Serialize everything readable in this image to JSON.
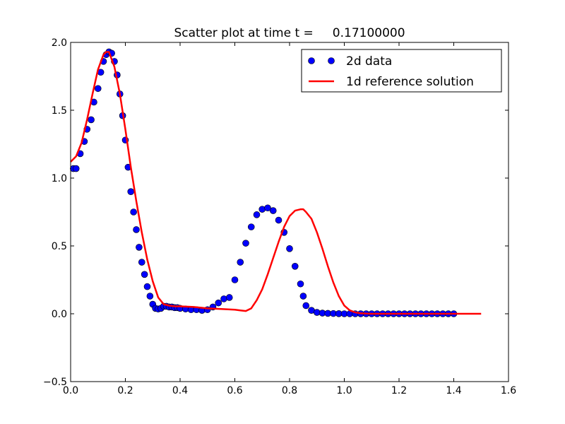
{
  "chart_data": {
    "type": "scatter",
    "title": "Scatter plot at time t =     0.17100000",
    "xlabel": "",
    "ylabel": "",
    "xlim": [
      0.0,
      1.6
    ],
    "ylim": [
      -0.5,
      2.0
    ],
    "xticks": [
      "0.0",
      "0.2",
      "0.4",
      "0.6",
      "0.8",
      "1.0",
      "1.2",
      "1.4",
      "1.6"
    ],
    "yticks": [
      "−0.5",
      "0.0",
      "0.5",
      "1.0",
      "1.5",
      "2.0"
    ],
    "grid": false,
    "legend_position": "top-right",
    "series": [
      {
        "name": "2d data",
        "kind": "markers",
        "color": "#0000ff",
        "x": [
          0.01,
          0.02,
          0.035,
          0.05,
          0.06,
          0.075,
          0.085,
          0.1,
          0.11,
          0.12,
          0.13,
          0.14,
          0.15,
          0.16,
          0.17,
          0.18,
          0.19,
          0.2,
          0.21,
          0.22,
          0.23,
          0.24,
          0.25,
          0.26,
          0.27,
          0.28,
          0.29,
          0.3,
          0.31,
          0.32,
          0.33,
          0.34,
          0.35,
          0.36,
          0.37,
          0.38,
          0.39,
          0.4,
          0.42,
          0.44,
          0.46,
          0.48,
          0.5,
          0.52,
          0.54,
          0.56,
          0.58,
          0.6,
          0.62,
          0.64,
          0.66,
          0.68,
          0.7,
          0.72,
          0.74,
          0.76,
          0.78,
          0.8,
          0.82,
          0.84,
          0.85,
          0.86,
          0.88,
          0.9,
          0.92,
          0.94,
          0.96,
          0.98,
          1.0,
          1.02,
          1.04,
          1.06,
          1.08,
          1.1,
          1.12,
          1.14,
          1.16,
          1.18,
          1.2,
          1.22,
          1.24,
          1.26,
          1.28,
          1.3,
          1.32,
          1.34,
          1.36,
          1.38,
          1.4
        ],
        "y": [
          1.07,
          1.07,
          1.18,
          1.27,
          1.36,
          1.43,
          1.56,
          1.66,
          1.78,
          1.86,
          1.91,
          1.93,
          1.92,
          1.86,
          1.76,
          1.62,
          1.46,
          1.28,
          1.08,
          0.9,
          0.75,
          0.62,
          0.49,
          0.38,
          0.29,
          0.2,
          0.13,
          0.07,
          0.04,
          0.035,
          0.04,
          0.055,
          0.055,
          0.05,
          0.05,
          0.045,
          0.045,
          0.04,
          0.035,
          0.03,
          0.03,
          0.025,
          0.03,
          0.05,
          0.08,
          0.11,
          0.12,
          0.25,
          0.38,
          0.52,
          0.64,
          0.73,
          0.77,
          0.78,
          0.76,
          0.69,
          0.6,
          0.48,
          0.35,
          0.22,
          0.13,
          0.06,
          0.025,
          0.01,
          0.005,
          0.003,
          0.002,
          0.001,
          0.0,
          0.0,
          0.0,
          0.0,
          0.0,
          0.0,
          0.0,
          0.0,
          0.0,
          0.0,
          0.0,
          0.0,
          0.0,
          0.0,
          0.0,
          0.0,
          0.0,
          0.0,
          0.0,
          0.0,
          0.0
        ]
      },
      {
        "name": "1d reference solution",
        "kind": "line",
        "color": "#ff0000",
        "x": [
          0.0,
          0.02,
          0.04,
          0.06,
          0.08,
          0.1,
          0.12,
          0.13,
          0.14,
          0.16,
          0.18,
          0.2,
          0.22,
          0.24,
          0.26,
          0.28,
          0.3,
          0.32,
          0.34,
          0.36,
          0.38,
          0.4,
          0.45,
          0.5,
          0.55,
          0.6,
          0.62,
          0.64,
          0.66,
          0.68,
          0.7,
          0.72,
          0.74,
          0.76,
          0.78,
          0.8,
          0.82,
          0.84,
          0.85,
          0.86,
          0.88,
          0.9,
          0.92,
          0.94,
          0.96,
          0.98,
          1.0,
          1.02,
          1.04,
          1.06,
          1.08,
          1.1,
          1.2,
          1.3,
          1.4,
          1.5
        ],
        "y": [
          1.12,
          1.16,
          1.26,
          1.43,
          1.62,
          1.8,
          1.91,
          1.93,
          1.93,
          1.82,
          1.62,
          1.36,
          1.08,
          0.83,
          0.6,
          0.4,
          0.24,
          0.12,
          0.07,
          0.06,
          0.055,
          0.055,
          0.05,
          0.04,
          0.035,
          0.03,
          0.025,
          0.02,
          0.04,
          0.1,
          0.18,
          0.29,
          0.41,
          0.53,
          0.64,
          0.72,
          0.76,
          0.77,
          0.77,
          0.75,
          0.7,
          0.6,
          0.48,
          0.35,
          0.23,
          0.13,
          0.06,
          0.025,
          0.01,
          0.003,
          0.001,
          0.0,
          0.0,
          0.0,
          0.0,
          0.0
        ]
      }
    ]
  }
}
